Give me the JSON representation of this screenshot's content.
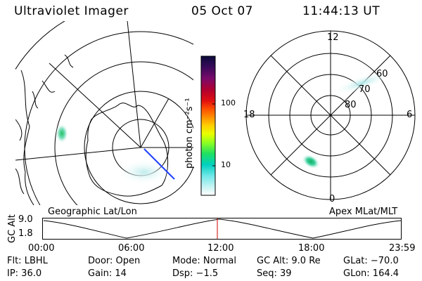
{
  "header": {
    "title": "Ultraviolet Imager",
    "date": "05 Oct 07",
    "time": "11:44:13 UT"
  },
  "left_map": {
    "caption": "Geographic Lat/Lon"
  },
  "colorbar": {
    "label": "photon cm⁻²s⁻¹",
    "ticks": [
      "100",
      "10"
    ],
    "colors": [
      "#0a0a3c",
      "#3a0a5a",
      "#7a0a6a",
      "#a00030",
      "#d00010",
      "#ff3000",
      "#ff7000",
      "#ffa000",
      "#ffe000",
      "#e0ff00",
      "#80ff20",
      "#20e060",
      "#00d0c0",
      "#60e8e8",
      "#c0f4f4",
      "#ffffff"
    ]
  },
  "right_map": {
    "caption": "Apex MLat/MLT",
    "lat_labels": [
      "60",
      "70",
      "80"
    ],
    "mlt_labels": {
      "top": "12",
      "left": "18",
      "right": "6",
      "bottom": "0"
    }
  },
  "altitude_plot": {
    "ylabel": "GC Alt",
    "y_ticks": [
      "9.0",
      "1.8"
    ],
    "x_ticks": [
      "00:00",
      "06:00",
      "12:00",
      "18:00",
      "23:59"
    ],
    "current_marker_color": "#d00000"
  },
  "info": {
    "flt": "Flt: LBHL",
    "door": "Door: Open",
    "mode": "Mode: Normal",
    "gc_alt": "GC Alt: 9.0 Re",
    "glat": "GLat: −70.0",
    "ip": "IP: 36.0",
    "gain": "Gain: 14",
    "dsp": "Dsp:   −1.5",
    "seq": "Seq: 39",
    "glon": "GLon: 164.4"
  }
}
